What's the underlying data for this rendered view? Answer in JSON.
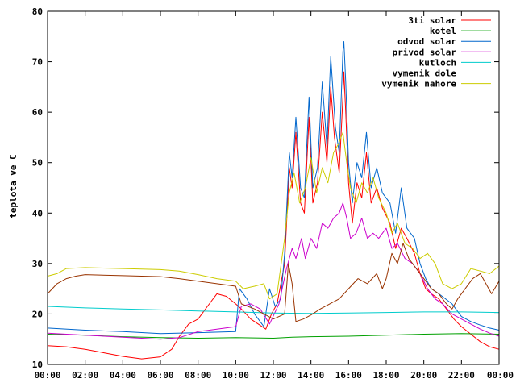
{
  "chart_data": {
    "type": "line",
    "ylabel": "teplota ve C",
    "xlabel": "",
    "ylim": [
      10,
      80
    ],
    "xlim": [
      0,
      24
    ],
    "yticks": [
      10,
      20,
      30,
      40,
      50,
      60,
      70,
      80
    ],
    "xticks": [
      {
        "x": 0,
        "label": "00:00"
      },
      {
        "x": 2,
        "label": "02:00"
      },
      {
        "x": 4,
        "label": "04:00"
      },
      {
        "x": 6,
        "label": "06:00"
      },
      {
        "x": 8,
        "label": "08:00"
      },
      {
        "x": 10,
        "label": "10:00"
      },
      {
        "x": 12,
        "label": "12:00"
      },
      {
        "x": 14,
        "label": "14:00"
      },
      {
        "x": 16,
        "label": "16:00"
      },
      {
        "x": 18,
        "label": "18:00"
      },
      {
        "x": 20,
        "label": "20:00"
      },
      {
        "x": 22,
        "label": "22:00"
      },
      {
        "x": 24,
        "label": "00:00"
      }
    ],
    "grid": false,
    "legend": "top-right",
    "series": [
      {
        "name": "3ti solar",
        "color": "#ff0000",
        "points": [
          [
            0,
            13.7
          ],
          [
            1,
            13.5
          ],
          [
            2,
            13
          ],
          [
            3,
            12.3
          ],
          [
            4,
            11.6
          ],
          [
            5,
            11.1
          ],
          [
            6,
            11.5
          ],
          [
            6.6,
            13
          ],
          [
            7,
            15.5
          ],
          [
            7.5,
            18
          ],
          [
            8,
            19
          ],
          [
            8.5,
            21.5
          ],
          [
            9,
            24
          ],
          [
            9.5,
            23.5
          ],
          [
            10,
            22
          ],
          [
            10.3,
            21
          ],
          [
            10.8,
            19
          ],
          [
            11.2,
            18
          ],
          [
            11.6,
            17
          ],
          [
            11.9,
            20
          ],
          [
            12.2,
            22
          ],
          [
            12.6,
            30
          ],
          [
            12.85,
            49
          ],
          [
            13.0,
            45
          ],
          [
            13.2,
            56
          ],
          [
            13.45,
            42
          ],
          [
            13.65,
            40
          ],
          [
            13.9,
            59
          ],
          [
            14.1,
            42
          ],
          [
            14.35,
            46
          ],
          [
            14.6,
            60
          ],
          [
            14.85,
            50
          ],
          [
            15.05,
            65
          ],
          [
            15.25,
            55
          ],
          [
            15.5,
            48
          ],
          [
            15.7,
            63
          ],
          [
            15.75,
            68
          ],
          [
            15.85,
            60
          ],
          [
            16.0,
            46
          ],
          [
            16.2,
            38
          ],
          [
            16.45,
            46
          ],
          [
            16.7,
            43
          ],
          [
            16.95,
            52
          ],
          [
            17.2,
            42
          ],
          [
            17.5,
            45
          ],
          [
            17.8,
            41
          ],
          [
            18.2,
            38
          ],
          [
            18.5,
            33
          ],
          [
            18.8,
            37
          ],
          [
            19.1,
            35
          ],
          [
            19.5,
            32
          ],
          [
            19.8,
            28
          ],
          [
            20.1,
            25
          ],
          [
            20.4,
            24
          ],
          [
            20.8,
            23
          ],
          [
            21.2,
            21
          ],
          [
            21.6,
            19
          ],
          [
            22,
            17.5
          ],
          [
            22.5,
            16
          ],
          [
            23,
            14.5
          ],
          [
            23.5,
            13.5
          ],
          [
            24,
            13
          ]
        ]
      },
      {
        "name": "kotel",
        "color": "#00a000",
        "points": [
          [
            0,
            16
          ],
          [
            2,
            15.8
          ],
          [
            4,
            15.5
          ],
          [
            6,
            15.3
          ],
          [
            8,
            15.2
          ],
          [
            10,
            15.3
          ],
          [
            12,
            15.2
          ],
          [
            13,
            15.4
          ],
          [
            14,
            15.5
          ],
          [
            16,
            15.6
          ],
          [
            18,
            15.8
          ],
          [
            20,
            16
          ],
          [
            22,
            16.1
          ],
          [
            24,
            16
          ]
        ]
      },
      {
        "name": "odvod solar",
        "color": "#0066cc",
        "points": [
          [
            0,
            17.2
          ],
          [
            2,
            16.8
          ],
          [
            4,
            16.5
          ],
          [
            6,
            16.1
          ],
          [
            8,
            16.3
          ],
          [
            10,
            16.5
          ],
          [
            10.2,
            25
          ],
          [
            10.6,
            23
          ],
          [
            11,
            20
          ],
          [
            11.5,
            17.5
          ],
          [
            11.8,
            25
          ],
          [
            12.1,
            21.5
          ],
          [
            12.4,
            23
          ],
          [
            12.6,
            32
          ],
          [
            12.85,
            52
          ],
          [
            13.0,
            47
          ],
          [
            13.2,
            59
          ],
          [
            13.45,
            45
          ],
          [
            13.65,
            43
          ],
          [
            13.9,
            63
          ],
          [
            14.1,
            45
          ],
          [
            14.35,
            49
          ],
          [
            14.6,
            66
          ],
          [
            14.85,
            53
          ],
          [
            15.05,
            71
          ],
          [
            15.3,
            57
          ],
          [
            15.5,
            52
          ],
          [
            15.7,
            72
          ],
          [
            15.75,
            74
          ],
          [
            15.85,
            66
          ],
          [
            16.0,
            50
          ],
          [
            16.2,
            42
          ],
          [
            16.45,
            50
          ],
          [
            16.7,
            47
          ],
          [
            16.95,
            56
          ],
          [
            17.2,
            45
          ],
          [
            17.5,
            49
          ],
          [
            17.8,
            44
          ],
          [
            18.2,
            42
          ],
          [
            18.5,
            36
          ],
          [
            18.8,
            45
          ],
          [
            19.1,
            37
          ],
          [
            19.5,
            35
          ],
          [
            19.8,
            30
          ],
          [
            20.1,
            27
          ],
          [
            20.4,
            25
          ],
          [
            20.8,
            24
          ],
          [
            21.5,
            22
          ],
          [
            22,
            19.5
          ],
          [
            22.5,
            18.5
          ],
          [
            23,
            17.8
          ],
          [
            23.5,
            17.2
          ],
          [
            24,
            16.8
          ]
        ]
      },
      {
        "name": "privod solar",
        "color": "#cc00cc",
        "points": [
          [
            0,
            16.2
          ],
          [
            2,
            15.8
          ],
          [
            4,
            15.4
          ],
          [
            6,
            15.0
          ],
          [
            7,
            15.3
          ],
          [
            8,
            16.5
          ],
          [
            9,
            17
          ],
          [
            10,
            17.5
          ],
          [
            10.3,
            21.5
          ],
          [
            10.8,
            22
          ],
          [
            11.3,
            21
          ],
          [
            11.8,
            18
          ],
          [
            12.3,
            22
          ],
          [
            12.7,
            29
          ],
          [
            13.0,
            33
          ],
          [
            13.2,
            31
          ],
          [
            13.5,
            35
          ],
          [
            13.7,
            31
          ],
          [
            14.0,
            35
          ],
          [
            14.3,
            33
          ],
          [
            14.6,
            38
          ],
          [
            14.9,
            37
          ],
          [
            15.2,
            39
          ],
          [
            15.5,
            40
          ],
          [
            15.7,
            42
          ],
          [
            15.9,
            39
          ],
          [
            16.1,
            35
          ],
          [
            16.4,
            36
          ],
          [
            16.7,
            39
          ],
          [
            17.0,
            35
          ],
          [
            17.3,
            36
          ],
          [
            17.6,
            35
          ],
          [
            18.0,
            37
          ],
          [
            18.3,
            33
          ],
          [
            18.6,
            34
          ],
          [
            19.0,
            31
          ],
          [
            19.4,
            30
          ],
          [
            19.8,
            28
          ],
          [
            20.2,
            25
          ],
          [
            20.6,
            23
          ],
          [
            21,
            22
          ],
          [
            21.5,
            20
          ],
          [
            22,
            19
          ],
          [
            22.5,
            18
          ],
          [
            23,
            17
          ],
          [
            23.5,
            16.2
          ],
          [
            24,
            15.6
          ]
        ]
      },
      {
        "name": "kutloch",
        "color": "#00cccc",
        "points": [
          [
            0,
            21.5
          ],
          [
            2,
            21.2
          ],
          [
            4,
            21
          ],
          [
            6,
            20.8
          ],
          [
            8,
            20.6
          ],
          [
            10,
            20.4
          ],
          [
            12,
            20.2
          ],
          [
            14,
            20.1
          ],
          [
            16,
            20.2
          ],
          [
            18,
            20.3
          ],
          [
            20,
            20.4
          ],
          [
            22,
            20.4
          ],
          [
            24,
            20.3
          ]
        ]
      },
      {
        "name": "vymenik dole",
        "color": "#993300",
        "points": [
          [
            0,
            24
          ],
          [
            0.5,
            26
          ],
          [
            1,
            27
          ],
          [
            1.5,
            27.5
          ],
          [
            2,
            27.8
          ],
          [
            4,
            27.6
          ],
          [
            6,
            27.4
          ],
          [
            7,
            27
          ],
          [
            8,
            26.5
          ],
          [
            9,
            26
          ],
          [
            10,
            25.5
          ],
          [
            10.3,
            22
          ],
          [
            11,
            21
          ],
          [
            11.5,
            20
          ],
          [
            12,
            19
          ],
          [
            12.6,
            20
          ],
          [
            12.8,
            30
          ],
          [
            13.0,
            26
          ],
          [
            13.2,
            18.5
          ],
          [
            13.6,
            19
          ],
          [
            14,
            19.8
          ],
          [
            14.5,
            21
          ],
          [
            15,
            22
          ],
          [
            15.5,
            23
          ],
          [
            16,
            25
          ],
          [
            16.5,
            27
          ],
          [
            17,
            26
          ],
          [
            17.5,
            28
          ],
          [
            17.8,
            25
          ],
          [
            18.0,
            27
          ],
          [
            18.3,
            32
          ],
          [
            18.6,
            30
          ],
          [
            18.9,
            34
          ],
          [
            19.2,
            31
          ],
          [
            19.6,
            29
          ],
          [
            20,
            27
          ],
          [
            20.4,
            25
          ],
          [
            20.8,
            24
          ],
          [
            21.2,
            22
          ],
          [
            21.5,
            21
          ],
          [
            21.8,
            23
          ],
          [
            22.2,
            25
          ],
          [
            22.6,
            27
          ],
          [
            23,
            28
          ],
          [
            23.3,
            26
          ],
          [
            23.6,
            24
          ],
          [
            24,
            26.5
          ]
        ]
      },
      {
        "name": "vymenik nahore",
        "color": "#cccc00",
        "points": [
          [
            0,
            27.5
          ],
          [
            0.5,
            28
          ],
          [
            1,
            29
          ],
          [
            2,
            29.2
          ],
          [
            4,
            29
          ],
          [
            6,
            28.8
          ],
          [
            7,
            28.5
          ],
          [
            8,
            27.8
          ],
          [
            9,
            27
          ],
          [
            10,
            26.5
          ],
          [
            10.4,
            25
          ],
          [
            11,
            25.5
          ],
          [
            11.5,
            26
          ],
          [
            11.8,
            23
          ],
          [
            12.2,
            24
          ],
          [
            12.6,
            35
          ],
          [
            12.85,
            44
          ],
          [
            13.1,
            48
          ],
          [
            13.4,
            42
          ],
          [
            13.7,
            45
          ],
          [
            14.0,
            51
          ],
          [
            14.3,
            44
          ],
          [
            14.6,
            49
          ],
          [
            14.9,
            46
          ],
          [
            15.2,
            52
          ],
          [
            15.5,
            54
          ],
          [
            15.7,
            56
          ],
          [
            15.9,
            50
          ],
          [
            16.1,
            45
          ],
          [
            16.4,
            42
          ],
          [
            16.7,
            46
          ],
          [
            17.0,
            44
          ],
          [
            17.3,
            47
          ],
          [
            17.6,
            43
          ],
          [
            18.0,
            40
          ],
          [
            18.3,
            36
          ],
          [
            18.6,
            38
          ],
          [
            19.0,
            34
          ],
          [
            19.4,
            33
          ],
          [
            19.8,
            31
          ],
          [
            20.2,
            32
          ],
          [
            20.6,
            30
          ],
          [
            21,
            26
          ],
          [
            21.5,
            25
          ],
          [
            22,
            26
          ],
          [
            22.5,
            29
          ],
          [
            23,
            28.5
          ],
          [
            23.5,
            28
          ],
          [
            24,
            29.5
          ]
        ]
      }
    ]
  }
}
